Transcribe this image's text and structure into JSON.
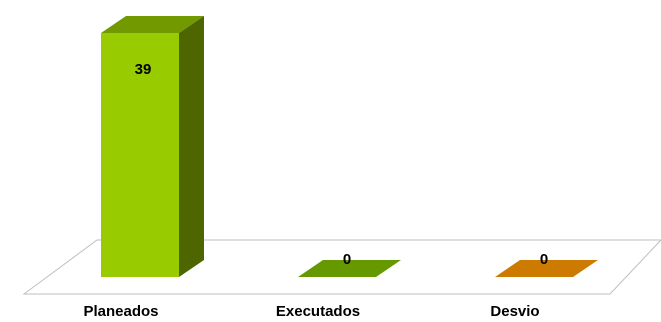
{
  "chart_data": {
    "type": "bar",
    "style": "3d-column",
    "categories": [
      "Planeados",
      "Executados",
      "Desvio"
    ],
    "values": [
      39,
      0,
      0
    ],
    "data_labels": [
      "39",
      "0",
      "0"
    ],
    "colors": [
      "#99cc00",
      "#669900",
      "#cc7a00"
    ],
    "title": "",
    "xlabel": "",
    "ylabel": "",
    "ylim": [
      0,
      39
    ],
    "grid": false,
    "legend": "none"
  }
}
